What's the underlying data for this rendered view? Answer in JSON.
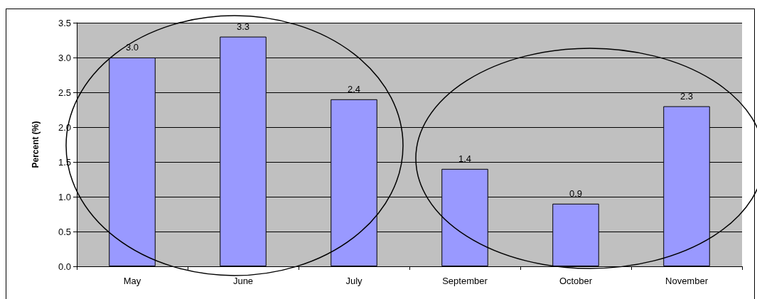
{
  "chart_data": {
    "type": "bar",
    "ylabel": "Percent (%)",
    "categories": [
      "May",
      "June",
      "July",
      "September",
      "October",
      "November"
    ],
    "values": [
      3.0,
      3.3,
      2.4,
      1.4,
      0.9,
      2.3
    ],
    "color": "#9999ff",
    "ylim": [
      0,
      3.5
    ],
    "yticks": [
      {
        "value": 0,
        "label": "0.0"
      },
      {
        "value": 0.5,
        "label": "0.5"
      },
      {
        "value": 1,
        "label": "1.0"
      },
      {
        "value": 1.5,
        "label": "1.5"
      },
      {
        "value": 2,
        "label": "2.0"
      },
      {
        "value": 2.5,
        "label": "2.5"
      },
      {
        "value": 3,
        "label": "3.0"
      },
      {
        "value": 3.5,
        "label": "3.5"
      }
    ],
    "value_labels": [
      "3.0",
      "3.3",
      "2.4",
      "1.4",
      "0.9",
      "2.3"
    ],
    "grid": "y"
  }
}
